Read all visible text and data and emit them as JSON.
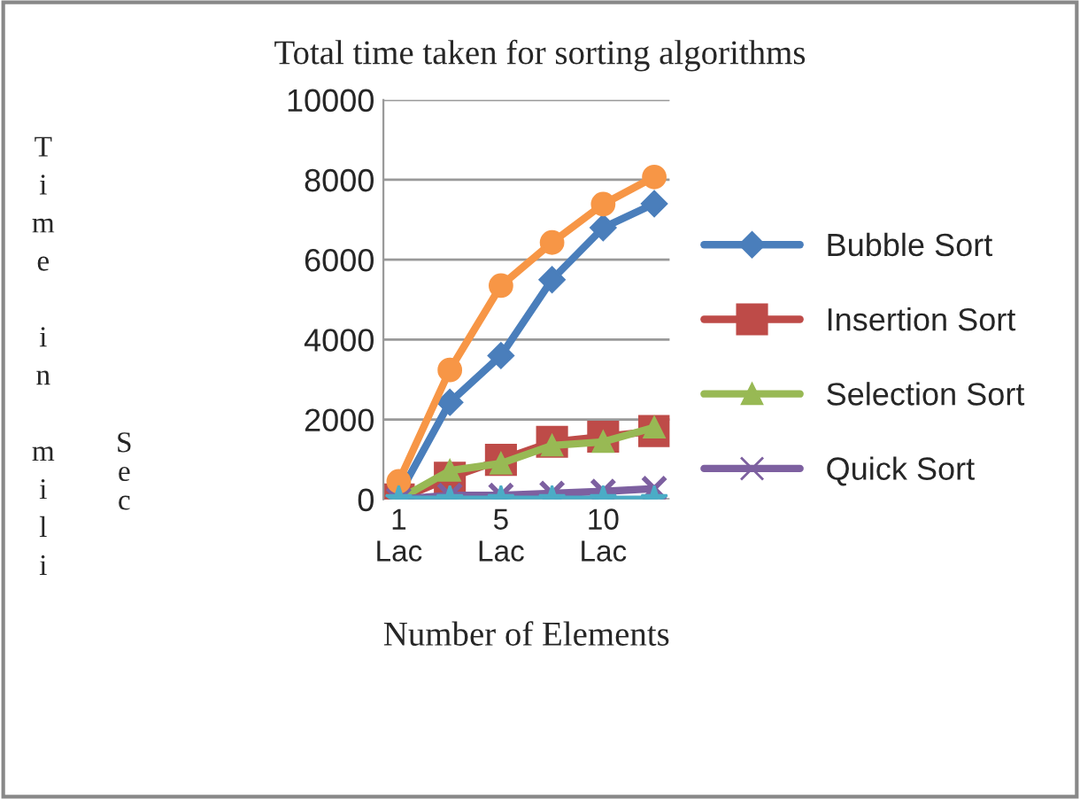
{
  "chart_data": {
    "type": "line",
    "title": "Total time taken for sorting algorithms",
    "xlabel": "Number of Elements",
    "ylabel": "Time in mili Sec",
    "categories": [
      "1 Lac",
      null,
      "5 Lac",
      null,
      "10 Lac",
      null
    ],
    "ylim": [
      0,
      10000
    ],
    "yticks": [
      0,
      2000,
      4000,
      6000,
      8000,
      10000
    ],
    "grid": "y",
    "legend": "right",
    "series": [
      {
        "name": "Bubble Sort",
        "color": "#4a7ebb",
        "marker": "diamond",
        "values": [
          100,
          2430,
          3600,
          5500,
          6800,
          7400
        ]
      },
      {
        "name": "Insertion Sort",
        "color": "#be4b48",
        "marker": "square",
        "values": [
          0,
          540,
          990,
          1440,
          1570,
          1710
        ]
      },
      {
        "name": "Selection Sort",
        "color": "#98b954",
        "marker": "triangle",
        "values": [
          0,
          720,
          900,
          1350,
          1440,
          1800
        ]
      },
      {
        "name": "Quick Sort",
        "color": "#7d60a0",
        "marker": "cross",
        "values": [
          0,
          100,
          100,
          150,
          200,
          270
        ]
      },
      {
        "color": "#f79646",
        "marker": "circle",
        "values": [
          450,
          3240,
          5350,
          6430,
          7390,
          8070
        ]
      },
      {
        "color": "#4bacc6",
        "marker": "star",
        "values": [
          0,
          0,
          0,
          0,
          0,
          0
        ]
      }
    ]
  }
}
